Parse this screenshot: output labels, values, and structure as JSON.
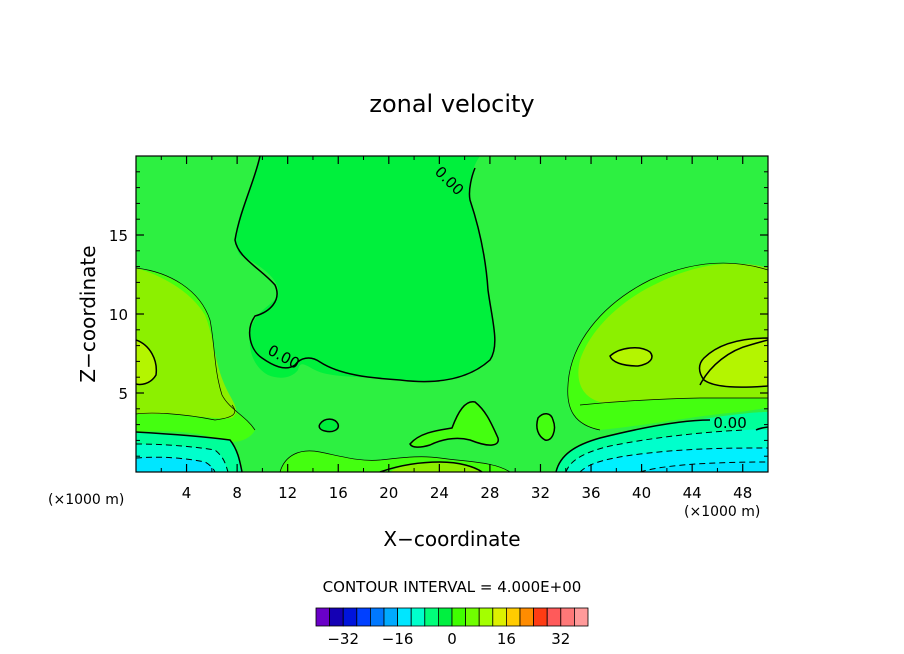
{
  "chart_data": {
    "type": "heatmap",
    "title": "zonal velocity",
    "xlabel": "X−coordinate",
    "ylabel": "Z−coordinate",
    "x_unit": "(×1000 m)",
    "y_unit": "(×1000 m)",
    "xlim": [
      0,
      50
    ],
    "ylim": [
      0,
      20
    ],
    "x_ticks": [
      4,
      8,
      12,
      16,
      20,
      24,
      28,
      32,
      36,
      40,
      44,
      48
    ],
    "y_ticks": [
      5,
      10,
      15
    ],
    "x_tick_labels": [
      "4",
      "8",
      "12",
      "16",
      "20",
      "24",
      "28",
      "32",
      "36",
      "40",
      "44",
      "48"
    ],
    "y_tick_labels": [
      "5",
      "10",
      "15"
    ],
    "contour_interval": 4.0,
    "contour_interval_text": "CONTOUR INTERVAL = 4.000E+00",
    "contour_labels": [
      {
        "text": "0.00",
        "x": 24.5,
        "z": 18.2
      },
      {
        "text": "0.00",
        "x": 11.5,
        "z": 7.0
      },
      {
        "text": "0.00",
        "x": 47.0,
        "z": 2.8
      }
    ],
    "colorbar": {
      "levels": [
        -36,
        -32,
        -28,
        -24,
        -20,
        -16,
        -12,
        -8,
        -4,
        0,
        4,
        8,
        12,
        16,
        20,
        24,
        28,
        32,
        36
      ],
      "tick_values": [
        -32,
        -16,
        0,
        16,
        32
      ],
      "tick_labels": [
        "−32",
        "−16",
        "0",
        "16",
        "32"
      ],
      "colors": [
        "#6a00c8",
        "#1400b4",
        "#0014dc",
        "#0040ff",
        "#0078ff",
        "#00aaff",
        "#00e6ff",
        "#00ffcc",
        "#00ff7a",
        "#00f040",
        "#40ff00",
        "#70ff00",
        "#a4ff00",
        "#ddf000",
        "#ffcc00",
        "#ff8c00",
        "#ff3c14",
        "#ff5a5a",
        "#ff7878",
        "#ff9a9a"
      ]
    },
    "fields": {
      "background_value_band": [
        -4,
        0
      ],
      "colors": {
        "band_m4_0": "#00ff40",
        "band_0_4": "#00f03c",
        "band_4_8": "#66ff00",
        "band_8_12": "#a6f000",
        "band_m8_m4": "#00ff99",
        "band_m12_m8": "#00ffcc",
        "band_m16_m12": "#00f0f0"
      }
    }
  }
}
